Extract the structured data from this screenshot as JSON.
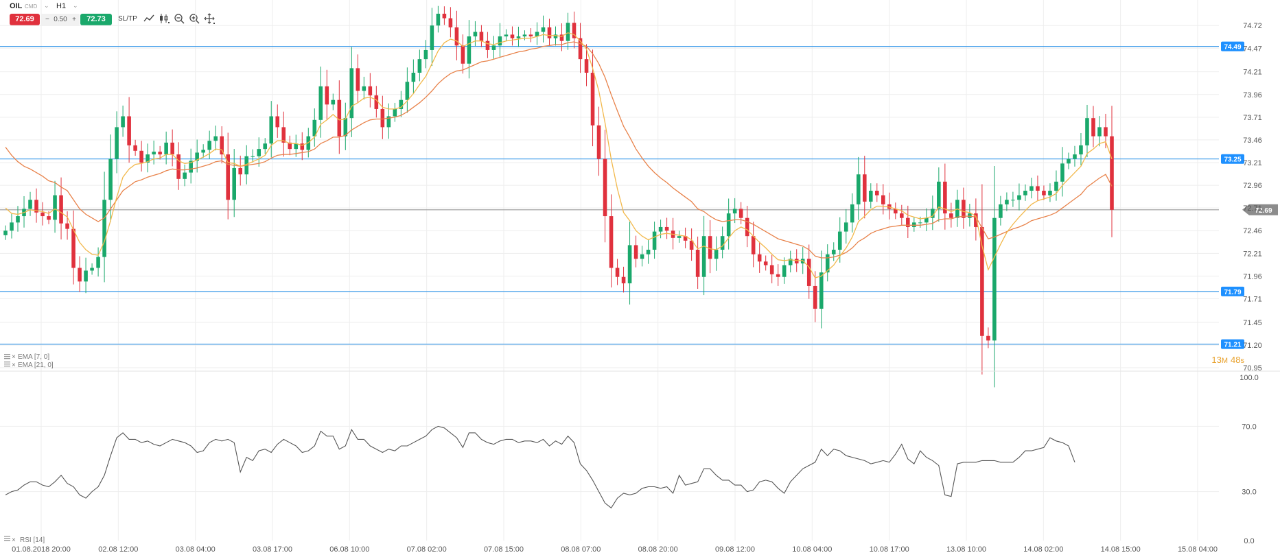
{
  "toolbar": {
    "symbol": "OIL",
    "instrument_type": "CMD",
    "timeframe": "H1",
    "sell_price": "72.69",
    "spread_minus": "−",
    "spread": "0.50",
    "spread_plus": "+",
    "buy_price": "72.73",
    "sltp_label": "SL/TP",
    "tools": [
      "line-chart-icon",
      "candles-icon",
      "zoom-out-icon",
      "zoom-in-icon",
      "crosshair-icon"
    ]
  },
  "colors": {
    "bull": "#1aa86b",
    "bear": "#e0313d",
    "ema7": "#f2b84b",
    "ema21": "#e8824a",
    "level_line": "#3d9be9",
    "level_label_bg": "#1e90ff",
    "current_price_line": "#999999",
    "current_price_bg": "#8c8c8c",
    "rsi_line": "#555555",
    "grid": "#eeeeee"
  },
  "countdown": {
    "minutes": "13",
    "m_unit": "M",
    "seconds": "48",
    "s_unit": "s"
  },
  "rsi_legend": "RSI [14]",
  "chart_data": [
    {
      "type": "candlestick",
      "indicators": [
        "EMA [7, 0]",
        "EMA [21, 0]"
      ],
      "y_ticks": [
        "74.72",
        "74.47",
        "74.21",
        "73.96",
        "73.71",
        "73.46",
        "73.21",
        "72.96",
        "72.71",
        "72.46",
        "72.21",
        "71.96",
        "71.71",
        "71.45",
        "71.20",
        "70.95"
      ],
      "ylim": [
        70.92,
        74.85
      ],
      "x_labels": [
        "01.08.2018 20:00",
        "02.08 12:00",
        "03.08 04:00",
        "03.08 17:00",
        "06.08 10:00",
        "07.08 02:00",
        "07.08 15:00",
        "08.08 07:00",
        "08.08 20:00",
        "09.08 12:00",
        "10.08 04:00",
        "10.08 17:00",
        "13.08 10:00",
        "14.08 02:00",
        "14.08 15:00",
        "15.08 04:00"
      ],
      "horizontal_levels": [
        "74.49",
        "73.25",
        "71.79",
        "71.21"
      ],
      "current_price": "72.69",
      "close": [
        72.46,
        72.55,
        72.62,
        72.7,
        72.8,
        72.66,
        72.62,
        72.58,
        72.85,
        72.54,
        72.48,
        72.05,
        71.9,
        72.02,
        72.05,
        72.17,
        72.8,
        73.25,
        73.6,
        73.72,
        73.4,
        73.34,
        73.21,
        73.3,
        73.33,
        73.3,
        73.43,
        73.3,
        73.03,
        73.1,
        73.23,
        73.32,
        73.35,
        73.45,
        73.5,
        73.3,
        72.8,
        73.15,
        73.08,
        73.28,
        73.28,
        73.36,
        73.42,
        73.72,
        73.6,
        73.43,
        73.36,
        73.42,
        73.35,
        73.5,
        73.68,
        74.05,
        73.85,
        73.9,
        73.5,
        73.7,
        74.25,
        74.0,
        74.05,
        73.95,
        73.8,
        73.6,
        73.72,
        73.8,
        73.9,
        74.1,
        74.2,
        74.35,
        74.45,
        74.72,
        74.85,
        74.8,
        74.7,
        74.5,
        74.3,
        74.6,
        74.65,
        74.55,
        74.45,
        74.5,
        74.6,
        74.62,
        74.58,
        74.6,
        74.62,
        74.6,
        74.65,
        74.7,
        74.58,
        74.62,
        74.55,
        74.75,
        74.58,
        74.35,
        74.2,
        73.62,
        73.25,
        72.62,
        72.05,
        71.95,
        71.88,
        72.3,
        72.15,
        72.2,
        72.25,
        72.45,
        72.5,
        72.46,
        72.38,
        72.4,
        72.35,
        72.25,
        71.95,
        72.4,
        72.15,
        72.25,
        72.4,
        72.65,
        72.7,
        72.6,
        72.4,
        72.2,
        72.12,
        72.08,
        71.98,
        71.95,
        72.08,
        72.15,
        72.1,
        72.15,
        71.85,
        71.6,
        72.0,
        72.2,
        72.25,
        72.45,
        72.55,
        72.75,
        73.08,
        72.78,
        72.9,
        72.85,
        72.75,
        72.7,
        72.65,
        72.6,
        72.5,
        72.55,
        72.55,
        72.6,
        72.7,
        73.0,
        72.65,
        72.6,
        72.8,
        72.6,
        72.65,
        72.5,
        71.3,
        71.25,
        72.6,
        72.75,
        72.8,
        72.8,
        72.85,
        72.9,
        72.95,
        72.9,
        72.85,
        72.9,
        73.0,
        73.2,
        73.25,
        73.3,
        73.4,
        73.7,
        73.5,
        73.6,
        73.5,
        72.69
      ],
      "ema7": [
        72.71,
        72.65,
        72.64,
        72.66,
        72.69,
        72.68,
        72.67,
        72.65,
        72.7,
        72.66,
        72.61,
        72.47,
        72.33,
        72.25,
        72.2,
        72.19,
        72.34,
        72.57,
        72.83,
        73.05,
        73.14,
        73.19,
        73.2,
        73.22,
        73.25,
        73.26,
        73.3,
        73.3,
        73.23,
        73.2,
        73.21,
        73.24,
        73.27,
        73.31,
        73.36,
        73.35,
        73.21,
        73.2,
        73.17,
        73.19,
        73.22,
        73.25,
        73.29,
        73.4,
        73.45,
        73.45,
        73.42,
        73.42,
        73.4,
        73.43,
        73.49,
        73.63,
        73.68,
        73.74,
        73.68,
        73.69,
        73.83,
        73.87,
        73.92,
        73.93,
        73.9,
        73.82,
        73.8,
        73.8,
        73.82,
        73.89,
        73.97,
        74.07,
        74.16,
        74.3,
        74.44,
        74.53,
        74.57,
        74.55,
        74.49,
        74.52,
        74.55,
        74.55,
        74.52,
        74.51,
        74.53,
        74.55,
        74.56,
        74.57,
        74.58,
        74.58,
        74.6,
        74.62,
        74.61,
        74.61,
        74.6,
        74.64,
        74.62,
        74.55,
        74.46,
        74.25,
        74.0,
        73.65,
        73.25,
        72.92,
        72.66,
        72.57,
        72.46,
        72.4,
        72.36,
        72.39,
        72.42,
        72.43,
        72.42,
        72.41,
        72.4,
        72.36,
        72.26,
        72.29,
        72.26,
        72.25,
        72.29,
        72.38,
        72.46,
        72.5,
        72.47,
        72.4,
        72.33,
        72.27,
        72.2,
        72.14,
        72.13,
        72.14,
        72.13,
        72.13,
        72.06,
        71.94,
        71.96,
        72.02,
        72.08,
        72.18,
        72.27,
        72.39,
        72.56,
        72.62,
        72.69,
        72.73,
        72.73,
        72.72,
        72.7,
        72.68,
        72.63,
        72.61,
        72.59,
        72.6,
        72.62,
        72.72,
        72.7,
        72.67,
        72.7,
        72.67,
        72.66,
        72.62,
        72.29,
        72.03,
        72.17,
        72.31,
        72.44,
        72.53,
        72.61,
        72.68,
        72.75,
        72.79,
        72.81,
        72.83,
        72.87,
        72.96,
        73.03,
        73.1,
        73.17,
        73.31,
        73.36,
        73.42,
        73.44,
        73.25
      ],
      "ema21": [
        73.38,
        73.29,
        73.22,
        73.17,
        73.14,
        73.1,
        73.06,
        73.01,
        72.99,
        72.94,
        72.9,
        72.8,
        72.7,
        72.64,
        72.6,
        72.56,
        72.6,
        72.7,
        72.8,
        72.9,
        72.95,
        73.0,
        73.02,
        73.05,
        73.07,
        73.09,
        73.12,
        73.14,
        73.13,
        73.13,
        73.14,
        73.15,
        73.17,
        73.19,
        73.22,
        73.23,
        73.19,
        73.18,
        73.17,
        73.18,
        73.19,
        73.2,
        73.22,
        73.26,
        73.29,
        73.3,
        73.3,
        73.31,
        73.32,
        73.33,
        73.36,
        73.42,
        73.45,
        73.49,
        73.49,
        73.51,
        73.57,
        73.61,
        73.65,
        73.68,
        73.69,
        73.69,
        73.7,
        73.71,
        73.73,
        73.77,
        73.82,
        73.87,
        73.93,
        74.0,
        74.08,
        74.14,
        74.19,
        74.22,
        74.23,
        74.26,
        74.29,
        74.32,
        74.33,
        74.35,
        74.37,
        74.39,
        74.41,
        74.43,
        74.44,
        74.46,
        74.47,
        74.49,
        74.5,
        74.51,
        74.51,
        74.53,
        74.54,
        74.52,
        74.49,
        74.41,
        74.3,
        74.15,
        73.96,
        73.78,
        73.61,
        73.49,
        73.36,
        73.26,
        73.17,
        73.1,
        73.04,
        72.99,
        72.93,
        72.88,
        72.83,
        72.78,
        72.7,
        72.67,
        72.62,
        72.58,
        72.56,
        72.57,
        72.58,
        72.58,
        72.56,
        72.53,
        72.49,
        72.45,
        72.41,
        72.37,
        72.35,
        72.33,
        72.31,
        72.29,
        72.25,
        72.18,
        72.16,
        72.16,
        72.17,
        72.19,
        72.22,
        72.27,
        72.34,
        72.38,
        72.43,
        72.46,
        72.48,
        72.5,
        72.51,
        72.52,
        72.52,
        72.52,
        72.52,
        72.53,
        72.54,
        72.58,
        72.59,
        72.59,
        72.61,
        72.62,
        72.62,
        72.61,
        72.49,
        72.37,
        72.39,
        72.42,
        72.45,
        72.48,
        72.5,
        72.53,
        72.57,
        72.59,
        72.61,
        72.63,
        72.66,
        72.71,
        72.76,
        72.81,
        72.86,
        72.94,
        72.99,
        73.04,
        73.08,
        72.95
      ]
    },
    {
      "type": "line",
      "name": "RSI [14]",
      "y_ticks": [
        "100.0",
        "70.0",
        "30.0",
        "0.0"
      ],
      "ylim": [
        0,
        100
      ],
      "values": [
        28,
        30,
        31,
        34,
        36,
        36,
        34,
        33,
        36,
        40,
        35,
        33,
        28,
        26,
        30,
        33,
        40,
        52,
        63,
        66,
        62,
        62,
        60,
        61,
        59,
        58,
        60,
        62,
        61,
        60,
        58,
        54,
        55,
        60,
        62,
        61,
        62,
        60,
        42,
        51,
        49,
        55,
        56,
        54,
        59,
        62,
        60,
        58,
        54,
        55,
        58,
        67,
        64,
        64,
        56,
        58,
        68,
        62,
        62,
        58,
        56,
        54,
        56,
        55,
        58,
        58,
        60,
        62,
        64,
        68,
        70,
        69,
        66,
        63,
        57,
        66,
        66,
        62,
        60,
        59,
        61,
        62,
        62,
        60,
        61,
        61,
        60,
        62,
        58,
        61,
        59,
        64,
        60,
        47,
        43,
        37,
        30,
        23,
        20,
        26,
        29,
        28,
        29,
        32,
        33,
        33,
        32,
        33,
        29,
        40,
        34,
        35,
        36,
        44,
        44,
        40,
        37,
        37,
        34,
        34,
        30,
        31,
        36,
        37,
        36,
        32,
        29,
        36,
        40,
        44,
        46,
        48,
        56,
        52,
        56,
        55,
        52,
        51,
        50,
        49,
        47,
        48,
        49,
        48,
        53,
        59,
        50,
        47,
        55,
        51,
        49,
        46,
        28,
        27,
        47,
        48,
        48,
        48,
        49,
        49,
        49,
        48,
        48,
        48,
        51,
        55,
        55,
        56,
        57,
        63,
        61,
        60,
        58,
        48
      ]
    }
  ]
}
